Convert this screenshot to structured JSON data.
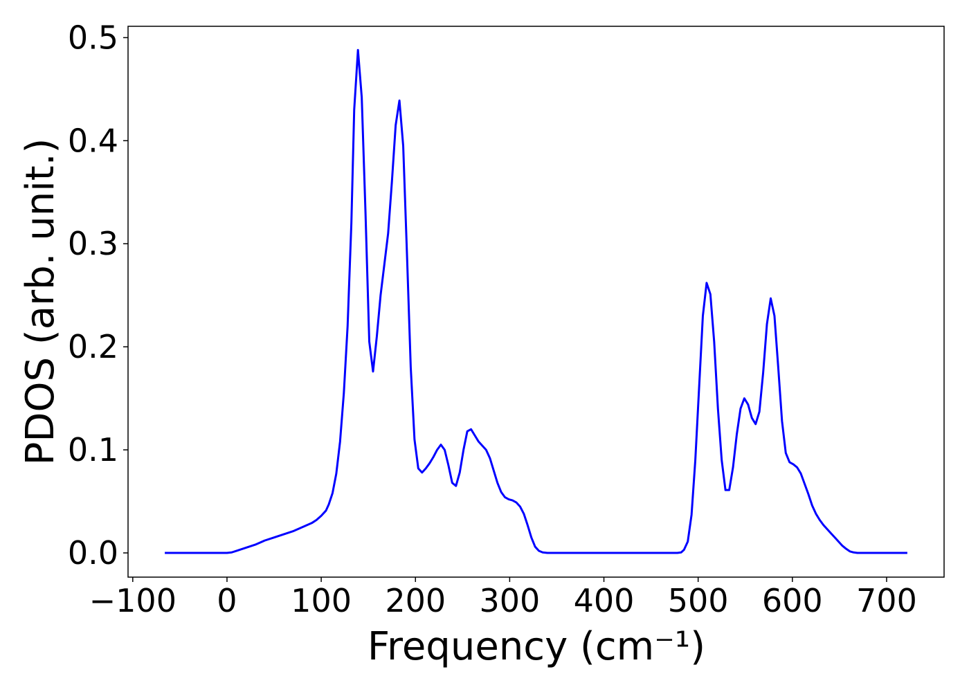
{
  "chart_data": {
    "type": "line",
    "xlabel": "Frequency (cm⁻¹)",
    "ylabel": "PDOS (arb. unit.)",
    "color": "#0000ff",
    "x": [
      -66,
      0,
      5,
      10,
      20,
      30,
      40,
      50,
      60,
      70,
      80,
      90,
      95,
      100,
      105,
      108,
      112,
      116,
      120,
      124,
      128,
      132,
      135,
      139,
      143,
      147,
      151,
      155,
      159,
      163,
      167,
      171,
      175,
      179,
      183,
      187,
      191,
      195,
      199,
      203,
      207,
      211,
      215,
      219,
      223,
      227,
      231,
      235,
      239,
      243,
      247,
      251,
      255,
      259,
      263,
      267,
      271,
      275,
      279,
      283,
      287,
      291,
      295,
      299,
      303,
      307,
      311,
      315,
      319,
      323,
      327,
      331,
      335,
      340,
      478,
      482,
      485,
      489,
      493,
      497,
      501,
      505,
      509,
      513,
      517,
      521,
      525,
      529,
      533,
      537,
      541,
      545,
      549,
      553,
      557,
      561,
      565,
      569,
      573,
      577,
      581,
      585,
      589,
      593,
      597,
      601,
      605,
      609,
      613,
      617,
      621,
      625,
      629,
      633,
      637,
      641,
      645,
      649,
      653,
      657,
      661,
      665,
      669,
      722
    ],
    "y": [
      0,
      0,
      0.0005,
      0.002,
      0.005,
      0.008,
      0.012,
      0.015,
      0.018,
      0.021,
      0.025,
      0.029,
      0.032,
      0.036,
      0.041,
      0.047,
      0.058,
      0.077,
      0.108,
      0.155,
      0.22,
      0.32,
      0.43,
      0.488,
      0.442,
      0.33,
      0.205,
      0.176,
      0.21,
      0.25,
      0.28,
      0.31,
      0.36,
      0.415,
      0.439,
      0.395,
      0.29,
      0.18,
      0.11,
      0.082,
      0.078,
      0.082,
      0.087,
      0.093,
      0.1,
      0.105,
      0.1,
      0.085,
      0.068,
      0.065,
      0.078,
      0.1,
      0.118,
      0.12,
      0.114,
      0.108,
      0.104,
      0.1,
      0.092,
      0.08,
      0.068,
      0.059,
      0.054,
      0.052,
      0.051,
      0.049,
      0.045,
      0.038,
      0.027,
      0.015,
      0.006,
      0.002,
      0.0005,
      0,
      0,
      0.0005,
      0.003,
      0.011,
      0.037,
      0.09,
      0.16,
      0.23,
      0.262,
      0.251,
      0.205,
      0.14,
      0.09,
      0.061,
      0.061,
      0.083,
      0.115,
      0.14,
      0.15,
      0.144,
      0.131,
      0.125,
      0.137,
      0.175,
      0.222,
      0.247,
      0.23,
      0.18,
      0.128,
      0.097,
      0.088,
      0.086,
      0.083,
      0.077,
      0.067,
      0.057,
      0.046,
      0.038,
      0.032,
      0.027,
      0.023,
      0.019,
      0.015,
      0.011,
      0.007,
      0.004,
      0.0015,
      0.0005,
      0,
      0
    ],
    "xlim": [
      -105,
      761
    ],
    "ylim": [
      -0.0235,
      0.511
    ],
    "xticks": [
      {
        "value": -100,
        "label": "−100"
      },
      0,
      100,
      200,
      300,
      400,
      500,
      600,
      700
    ],
    "yticks": [
      {
        "value": 0,
        "label": "0.0"
      },
      0.1,
      0.2,
      0.3,
      0.4,
      0.5
    ],
    "grid": false
  }
}
